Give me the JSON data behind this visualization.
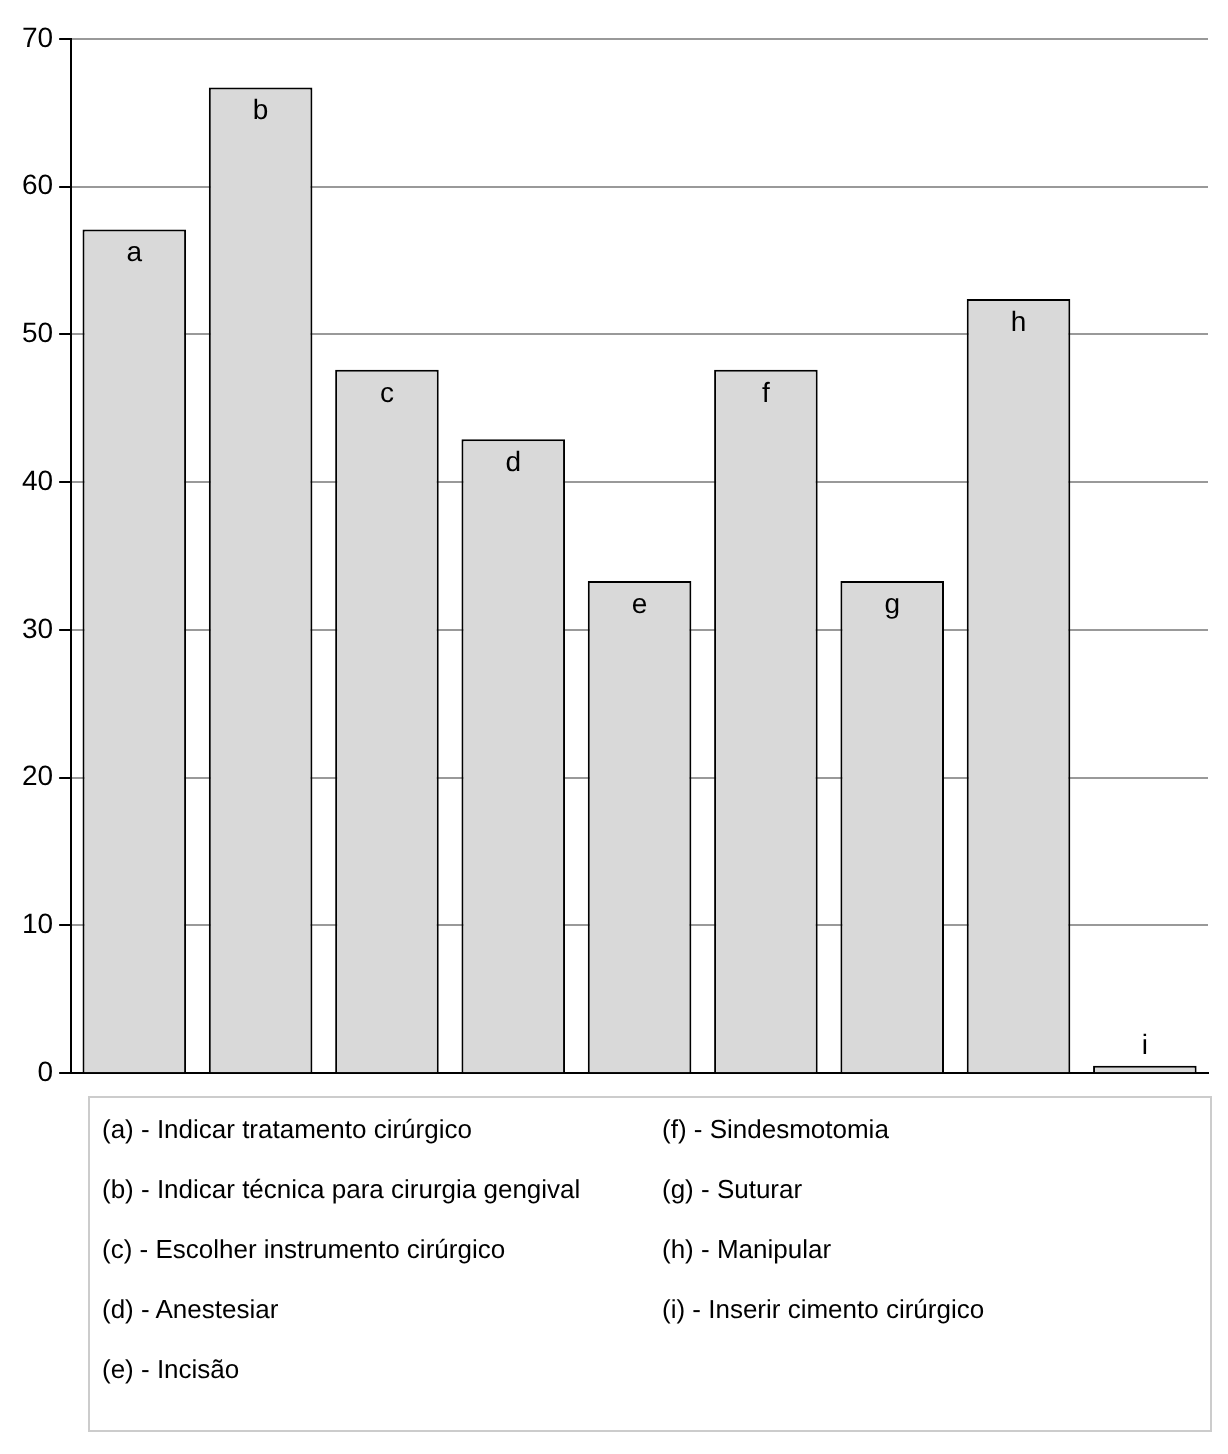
{
  "chart_data": {
    "type": "bar",
    "categories": [
      "a",
      "b",
      "c",
      "d",
      "e",
      "f",
      "g",
      "h",
      "i"
    ],
    "values": [
      57.1,
      66.7,
      47.6,
      42.9,
      33.3,
      47.6,
      33.3,
      52.4,
      0.5
    ],
    "color": "#d9d9d9",
    "ylim": [
      0,
      70
    ],
    "yticks": [
      0,
      10,
      20,
      30,
      40,
      50,
      60,
      70
    ],
    "grid": "y",
    "legend": false,
    "tick_labels": "y",
    "annotations": [
      "(a) - Indicar tratamento cirúrgico",
      "(b) - Indicar técnica para cirurgia gengival",
      "(c) - Escolher instrumento cirúrgico",
      "(d) - Anestesiar",
      "(e) - Incisão",
      "(f) - Sindesmotomia",
      "(g) - Suturar",
      "(h) - Manipular",
      "(i) - Inserir cimento cirúrgico"
    ]
  }
}
